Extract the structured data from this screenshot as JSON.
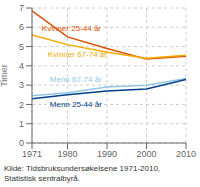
{
  "chart_data": {
    "type": "line",
    "x": [
      1971,
      1980,
      1990,
      2000,
      2010
    ],
    "series": [
      {
        "name": "Kvinner 25-44 år",
        "color": "#d94f00",
        "values": [
          6.85,
          5.5,
          4.9,
          4.35,
          4.5
        ]
      },
      {
        "name": "Kvinner 67-74 år",
        "color": "#f5a800",
        "values": [
          5.6,
          5.1,
          4.7,
          4.4,
          4.55
        ]
      },
      {
        "name": "Menn 67-74 år",
        "color": "#91c6e7",
        "values": [
          2.45,
          2.6,
          2.9,
          3.0,
          3.35
        ]
      },
      {
        "name": "Menn 25-44 år",
        "color": "#003f8a",
        "values": [
          2.3,
          2.5,
          2.7,
          2.8,
          3.3
        ]
      }
    ],
    "y_label": "Timer",
    "xlim": [
      1971,
      2010
    ],
    "xticks": [
      1971,
      1980,
      1990,
      2000,
      2010
    ],
    "ylim": [
      0,
      7
    ],
    "yticks": [
      0,
      1,
      2,
      3,
      4,
      5,
      6,
      7
    ],
    "grid": true,
    "annotations": [
      {
        "text": "Kvinner 25-44 år",
        "x": 1973.5,
        "y": 5.95,
        "color": "#d94f00"
      },
      {
        "text": "Kvinner 67-74 år",
        "x": 1975.0,
        "y": 4.6,
        "color": "#f5a800"
      },
      {
        "text": "Menn 67-74 år",
        "x": 1975.5,
        "y": 3.3,
        "color": "#91c6e7"
      },
      {
        "text": "Menn 25-44 år",
        "x": 1975.5,
        "y": 2.0,
        "color": "#003f8a"
      }
    ],
    "source": "Kilde: Tidsbruksundersøkelsene 1971-2010,\nStatistisk sentralbyrå."
  }
}
